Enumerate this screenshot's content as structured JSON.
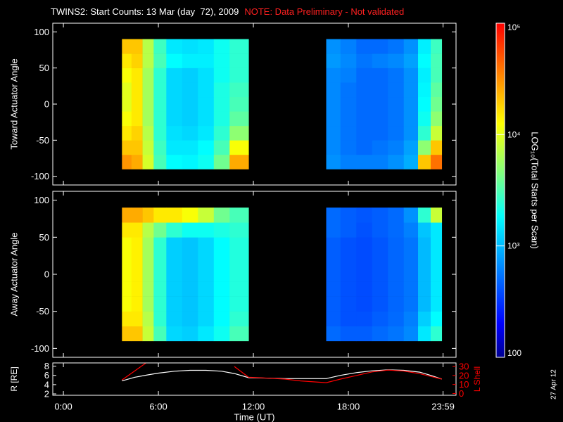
{
  "title": "TWINS2: Start Counts: 13 Mar (day  72), 2009",
  "note": "NOTE: Data Preliminary - Not validated",
  "date_stamp": "27 Apr 12",
  "chart_data": [
    {
      "type": "heatmap",
      "ylabel": "Toward Actuator Angle",
      "x_edges": [
        3.7,
        4.3,
        5.0,
        5.7,
        6.5,
        7.5,
        8.5,
        9.5,
        10.5,
        11.7,
        16.6,
        17.5,
        18.5,
        19.5,
        20.5,
        21.5,
        22.4,
        23.2,
        23.9
      ],
      "y_edges": [
        -90,
        -70,
        -50,
        -30,
        -10,
        10,
        30,
        50,
        70,
        90
      ],
      "values": [
        [
          30000,
          25000,
          9000,
          3000,
          1800,
          1700,
          2000,
          4000,
          25000,
          null,
          700,
          600,
          600,
          600,
          700,
          900,
          20000,
          40000
        ],
        [
          20000,
          20000,
          8000,
          2800,
          1500,
          1500,
          1800,
          3000,
          12000,
          null,
          650,
          550,
          500,
          550,
          600,
          800,
          5000,
          20000
        ],
        [
          15000,
          18000,
          7000,
          2500,
          1400,
          1300,
          1500,
          2500,
          5000,
          null,
          650,
          550,
          500,
          500,
          550,
          700,
          2500,
          8000
        ],
        [
          12000,
          15000,
          6000,
          2500,
          1300,
          1200,
          1400,
          2200,
          3500,
          null,
          650,
          550,
          500,
          500,
          550,
          700,
          2000,
          5000
        ],
        [
          10000,
          15000,
          6000,
          2500,
          1300,
          1200,
          1400,
          2200,
          3000,
          null,
          650,
          550,
          500,
          500,
          550,
          700,
          1800,
          4000
        ],
        [
          10000,
          15000,
          6000,
          2500,
          1300,
          1200,
          1400,
          2200,
          2800,
          null,
          650,
          550,
          500,
          500,
          550,
          700,
          1700,
          3500
        ],
        [
          12000,
          15000,
          6000,
          2500,
          1300,
          1200,
          1400,
          2000,
          2500,
          null,
          650,
          600,
          500,
          500,
          550,
          700,
          1600,
          3000
        ],
        [
          15000,
          18000,
          7000,
          3000,
          1800,
          1600,
          1600,
          2000,
          2500,
          null,
          750,
          650,
          550,
          600,
          650,
          800,
          1800,
          3000
        ],
        [
          20000,
          20000,
          7000,
          2800,
          1500,
          1400,
          1500,
          2000,
          2500,
          null,
          700,
          600,
          500,
          500,
          550,
          700,
          1600,
          2800
        ]
      ],
      "xlim": [
        -0.67,
        24.8
      ],
      "ylim": [
        -112,
        112
      ],
      "yticks": [
        -100,
        -50,
        0,
        50,
        100
      ]
    },
    {
      "type": "heatmap",
      "ylabel": "Away Actuator Angle",
      "x_edges": [
        3.7,
        4.3,
        5.0,
        5.7,
        6.5,
        7.5,
        8.5,
        9.5,
        10.5,
        11.7,
        16.6,
        17.5,
        18.5,
        19.5,
        20.5,
        21.5,
        22.4,
        23.2,
        23.9
      ],
      "y_edges": [
        -90,
        -70,
        -50,
        -30,
        -10,
        10,
        30,
        50,
        70,
        90
      ],
      "values": [
        [
          20000,
          20000,
          8000,
          3000,
          1300,
          1200,
          1500,
          2000,
          3000,
          null,
          500,
          450,
          450,
          500,
          550,
          650,
          1500,
          2500
        ],
        [
          15000,
          15000,
          7000,
          2500,
          1200,
          1100,
          1300,
          1800,
          2500,
          null,
          450,
          400,
          400,
          450,
          500,
          600,
          1200,
          1800
        ],
        [
          12000,
          14000,
          6000,
          2500,
          1200,
          1100,
          1300,
          1800,
          2300,
          null,
          450,
          400,
          380,
          420,
          480,
          550,
          1000,
          1500
        ],
        [
          12000,
          14000,
          6000,
          2500,
          1200,
          1100,
          1300,
          1800,
          2300,
          null,
          450,
          400,
          380,
          420,
          480,
          550,
          1000,
          1500
        ],
        [
          12000,
          14000,
          6000,
          2500,
          1200,
          1100,
          1300,
          1800,
          2300,
          null,
          450,
          400,
          380,
          420,
          480,
          550,
          1000,
          1500
        ],
        [
          12000,
          14000,
          6000,
          2500,
          1200,
          1100,
          1300,
          1800,
          2300,
          null,
          450,
          400,
          380,
          420,
          480,
          550,
          1000,
          1500
        ],
        [
          12000,
          14000,
          6000,
          2500,
          1200,
          1100,
          1300,
          1800,
          2300,
          null,
          450,
          400,
          380,
          420,
          480,
          550,
          1000,
          1500
        ],
        [
          15000,
          15000,
          7000,
          4000,
          2500,
          2000,
          2000,
          2200,
          2500,
          null,
          500,
          450,
          400,
          450,
          500,
          600,
          1100,
          1500
        ],
        [
          25000,
          25000,
          20000,
          15000,
          15000,
          12000,
          8000,
          4000,
          3000,
          null,
          500,
          450,
          420,
          450,
          500,
          700,
          2500,
          8000
        ]
      ],
      "xlim": [
        -0.67,
        24.8
      ],
      "ylim": [
        -112,
        112
      ],
      "yticks": [
        -100,
        -50,
        0,
        50,
        100
      ]
    },
    {
      "type": "line",
      "xlabel": "Time (UT)",
      "ylabel": "R [RE]",
      "y2label": "L Shell",
      "x": [
        3.7,
        4.5,
        5.3,
        6,
        7,
        8,
        9,
        10,
        10.8,
        11.7,
        13,
        14,
        15,
        16.6,
        17.5,
        18.5,
        19.5,
        20.5,
        21.5,
        22.5,
        23.2,
        23.9
      ],
      "series": [
        {
          "color": "#ffffff",
          "values": [
            4.8,
            5.6,
            6.1,
            6.5,
            6.9,
            7.1,
            7.1,
            6.9,
            6.4,
            5.5,
            5.4,
            5.3,
            5.3,
            5.3,
            6.0,
            6.6,
            7.0,
            7.2,
            7.1,
            6.7,
            6.0,
            5.2
          ]
        },
        {
          "color": "#ff0000",
          "axis": "y2",
          "values": [
            15,
            25,
            35,
            null,
            null,
            null,
            null,
            null,
            30,
            18,
            17,
            16,
            14,
            12,
            16,
            20,
            24,
            26,
            25,
            22,
            19,
            16
          ]
        }
      ],
      "xlim": [
        -0.67,
        24.8
      ],
      "xticks": [
        {
          "value": 0,
          "label": "0:00"
        },
        {
          "value": 6,
          "label": "6:00"
        },
        {
          "value": 12,
          "label": "12:00"
        },
        {
          "value": 18,
          "label": "18:00"
        },
        {
          "value": 23.98,
          "label": "23:59"
        }
      ],
      "ylim": [
        1.7,
        8.7
      ],
      "yticks": [
        2,
        4,
        6,
        8
      ],
      "y2lim": [
        -2,
        34
      ],
      "y2ticks": [
        0,
        10,
        20,
        30
      ]
    },
    {
      "type": "colorbar",
      "label": "LOG₁₀(Total Starts per Scan)",
      "log": true,
      "clim": [
        100,
        100000
      ],
      "ticks": [
        {
          "value": 100000,
          "label": "10⁵"
        },
        {
          "value": 10000,
          "label": "10⁴"
        },
        {
          "value": 1000,
          "label": "10³"
        },
        100
      ]
    }
  ]
}
